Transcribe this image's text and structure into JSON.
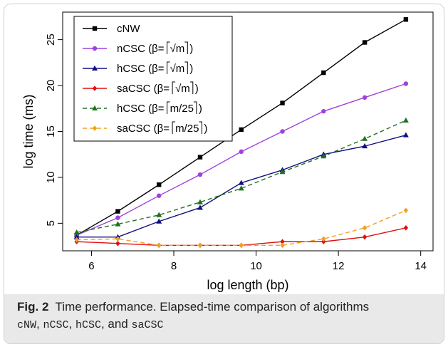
{
  "chart_data": {
    "type": "line",
    "xlabel": "log length (bp)",
    "ylabel": "log time (ms)",
    "xlim": [
      5.3,
      14.3
    ],
    "ylim": [
      2.0,
      28.0
    ],
    "xticks": [
      6,
      8,
      10,
      12,
      14
    ],
    "yticks": [
      5,
      10,
      15,
      20,
      25
    ],
    "x": [
      5.64,
      6.64,
      7.64,
      8.64,
      9.64,
      10.64,
      11.64,
      12.64,
      13.64
    ],
    "legend_position": "top-left",
    "series": [
      {
        "name": "cNW",
        "marker": "square",
        "dash": "solid",
        "color": "#000000",
        "values": [
          3.7,
          6.3,
          9.2,
          12.2,
          15.2,
          18.1,
          21.4,
          24.7,
          27.2
        ]
      },
      {
        "name": "nCSC",
        "beta": "√m",
        "marker": "circle",
        "dash": "solid",
        "color": "#a040e0",
        "values": [
          3.7,
          5.6,
          8.0,
          10.3,
          12.8,
          15.0,
          17.2,
          18.7,
          20.2
        ]
      },
      {
        "name": "hCSC",
        "beta": "√m",
        "marker": "triangle",
        "dash": "solid",
        "color": "#101080",
        "values": [
          3.5,
          3.5,
          5.2,
          6.7,
          9.4,
          10.8,
          12.5,
          13.4,
          14.6
        ]
      },
      {
        "name": "saCSC",
        "beta": "√m",
        "marker": "diamond",
        "dash": "solid",
        "color": "#e01010",
        "values": [
          3.0,
          2.8,
          2.6,
          2.6,
          2.6,
          3.0,
          3.0,
          3.5,
          4.5
        ]
      },
      {
        "name": "hCSC",
        "beta": "m/25",
        "marker": "triangle",
        "dash": "dashed",
        "color": "#207020",
        "values": [
          4.0,
          4.9,
          5.9,
          7.3,
          8.8,
          10.6,
          12.3,
          14.2,
          16.2
        ]
      },
      {
        "name": "saCSC",
        "beta": "m/25",
        "marker": "diamond",
        "dash": "dashed",
        "color": "#f0a020",
        "values": [
          3.2,
          3.3,
          2.6,
          2.6,
          2.6,
          2.6,
          3.3,
          4.5,
          6.4
        ]
      }
    ]
  },
  "caption": {
    "fig": "Fig. 2",
    "text": "Time performance. Elapsed-time comparison of algorithms",
    "code1": "cNW",
    "code2": "nCSC",
    "code3": "hCSC",
    "sep_and": ", and ",
    "code4": "saCSC"
  }
}
